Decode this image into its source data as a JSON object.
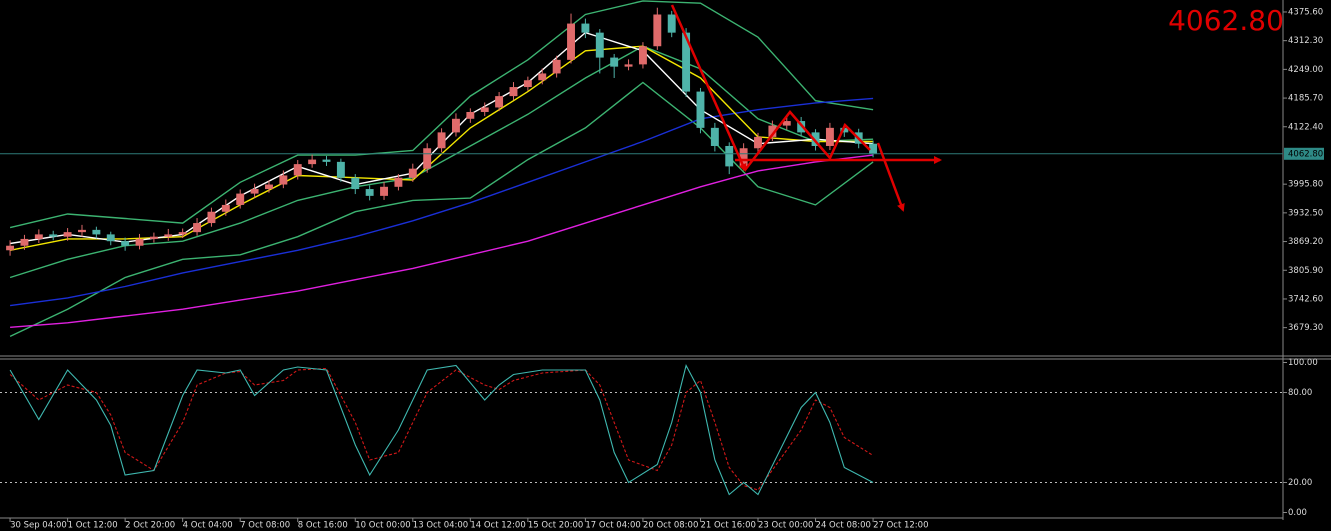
{
  "chart_data": [
    {
      "type": "candlestick",
      "annotation": "4062.80",
      "current_price": {
        "value": 4062.8,
        "label": "4062.80"
      },
      "xlim": [
        -0.7,
        88.5
      ],
      "ylim": [
        3619,
        4402
      ],
      "yticks": [
        {
          "value": 4375.6,
          "label": "4375.60"
        },
        {
          "value": 4312.3,
          "label": "4312.30"
        },
        {
          "value": 4249,
          "label": "4249.00"
        },
        {
          "value": 4185.7,
          "label": "4185.70"
        },
        {
          "value": 4122.4,
          "label": "4122.40"
        },
        {
          "value": 3995.8,
          "label": "3995.80"
        },
        {
          "value": 3932.5,
          "label": "3932.50"
        },
        {
          "value": 3869.2,
          "label": "3869.20"
        },
        {
          "value": 3805.9,
          "label": "3805.90"
        },
        {
          "value": 3742.6,
          "label": "3742.60"
        },
        {
          "value": 3679.3,
          "label": "3679.30"
        }
      ],
      "up_color": "#e06b6b",
      "down_color": "#4fb3a9",
      "open": [
        3850,
        3860,
        3875,
        3885,
        3880,
        3890,
        3895,
        3885,
        3870,
        3860,
        3875,
        3880,
        3885,
        3890,
        3910,
        3935,
        3950,
        3975,
        3985,
        3995,
        4015,
        4040,
        4050,
        4045,
        4010,
        3985,
        3970,
        3990,
        4010,
        4030,
        4075,
        4110,
        4140,
        4155,
        4165,
        4190,
        4210,
        4225,
        4240,
        4270,
        4350,
        4330,
        4275,
        4255,
        4260,
        4300,
        4370,
        4330,
        4200,
        4120,
        4080,
        4035,
        4075,
        4100,
        4125,
        4135,
        4110,
        4080,
        4120,
        4110,
        4085
      ],
      "high": [
        3872,
        3884,
        3896,
        3893,
        3899,
        3906,
        3902,
        3891,
        3878,
        3886,
        3889,
        3897,
        3898,
        3921,
        3944,
        3962,
        3984,
        3997,
        4004,
        4026,
        4049,
        4061,
        4058,
        4052,
        4018,
        3993,
        4001,
        4018,
        4041,
        4086,
        4119,
        4152,
        4163,
        4176,
        4199,
        4221,
        4233,
        4251,
        4279,
        4372,
        4361,
        4338,
        4283,
        4271,
        4309,
        4385,
        4378,
        4340,
        4208,
        4131,
        4088,
        4086,
        4109,
        4136,
        4143,
        4144,
        4117,
        4131,
        4128,
        4118,
        4092
      ],
      "low": [
        3838,
        3851,
        3866,
        3872,
        3871,
        3880,
        3876,
        3861,
        3849,
        3852,
        3867,
        3871,
        3877,
        3882,
        3902,
        3926,
        3942,
        3966,
        3977,
        3987,
        4006,
        4032,
        4036,
        4001,
        3974,
        3960,
        3961,
        3982,
        4001,
        4021,
        4066,
        4101,
        4131,
        4146,
        4157,
        4181,
        4202,
        4216,
        4231,
        4262,
        4318,
        4240,
        4230,
        4247,
        4251,
        4292,
        4320,
        4188,
        4108,
        4068,
        4018,
        4026,
        4066,
        4091,
        4116,
        4101,
        4070,
        4071,
        4100,
        4075,
        4055
      ],
      "close": [
        3860,
        3875,
        3885,
        3880,
        3890,
        3895,
        3885,
        3870,
        3860,
        3875,
        3880,
        3885,
        3890,
        3910,
        3935,
        3950,
        3975,
        3985,
        3995,
        4015,
        4040,
        4050,
        4045,
        4010,
        3985,
        3970,
        3990,
        4010,
        4030,
        4075,
        4110,
        4140,
        4155,
        4165,
        4190,
        4210,
        4225,
        4240,
        4270,
        4350,
        4330,
        4275,
        4255,
        4260,
        4300,
        4370,
        4330,
        4200,
        4120,
        4080,
        4035,
        4075,
        4100,
        4125,
        4135,
        4110,
        4080,
        4120,
        4110,
        4085,
        4062.8
      ],
      "overlay_x": [
        0,
        4,
        8,
        12,
        16,
        20,
        24,
        28,
        32,
        36,
        40,
        44,
        48,
        52,
        56,
        60
      ],
      "overlays": [
        {
          "color": "#3cb371",
          "values": [
            3900,
            3930,
            3920,
            3910,
            4000,
            4060,
            4060,
            4070,
            4190,
            4270,
            4370,
            4400,
            4395,
            4320,
            4180,
            4160
          ]
        },
        {
          "color": "#3cb371",
          "values": [
            3790,
            3830,
            3860,
            3870,
            3910,
            3960,
            3990,
            4010,
            4080,
            4150,
            4230,
            4300,
            4250,
            4140,
            4090,
            4095
          ]
        },
        {
          "color": "#3cb371",
          "values": [
            3660,
            3720,
            3790,
            3830,
            3840,
            3880,
            3935,
            3960,
            3965,
            4050,
            4120,
            4220,
            4120,
            3990,
            3950,
            4045
          ]
        },
        {
          "color": "#e020e0",
          "values": [
            3680,
            3690,
            3705,
            3720,
            3740,
            3760,
            3785,
            3810,
            3840,
            3870,
            3910,
            3950,
            3990,
            4025,
            4045,
            4060
          ]
        },
        {
          "color": "#1a2fd6",
          "values": [
            3728,
            3745,
            3770,
            3800,
            3825,
            3850,
            3880,
            3915,
            3955,
            4000,
            4045,
            4090,
            4140,
            4160,
            4175,
            4185
          ]
        },
        {
          "color": "#f2e600",
          "values": [
            3850,
            3875,
            3875,
            3880,
            3950,
            4015,
            4010,
            4005,
            4120,
            4200,
            4290,
            4300,
            4230,
            4100,
            4090,
            4090
          ]
        },
        {
          "color": "#ffffff",
          "values": [
            3865,
            3885,
            3868,
            3885,
            3970,
            4035,
            3995,
            4020,
            4150,
            4220,
            4330,
            4290,
            4160,
            4085,
            4095,
            4085
          ]
        }
      ]
    },
    {
      "type": "line",
      "xlim": [
        -0.7,
        88.5
      ],
      "ylim": [
        -5,
        103
      ],
      "yticks": [
        {
          "value": 100,
          "label": "100.00"
        },
        {
          "value": 80,
          "label": "80.00"
        },
        {
          "value": 20,
          "label": "20.00"
        },
        {
          "value": 0,
          "label": "0.00"
        }
      ],
      "levels": [
        80,
        20
      ],
      "xticks": [
        {
          "value": 0,
          "label": "30 Sep 04:00"
        },
        {
          "value": 4,
          "label": "1 Oct 12:00"
        },
        {
          "value": 8,
          "label": "2 Oct 20:00"
        },
        {
          "value": 12,
          "label": "4 Oct 04:00"
        },
        {
          "value": 16,
          "label": "7 Oct 08:00"
        },
        {
          "value": 20,
          "label": "8 Oct 16:00"
        },
        {
          "value": 24,
          "label": "10 Oct 00:00"
        },
        {
          "value": 28,
          "label": "13 Oct 04:00"
        },
        {
          "value": 32,
          "label": "14 Oct 12:00"
        },
        {
          "value": 36,
          "label": "15 Oct 20:00"
        },
        {
          "value": 40,
          "label": "17 Oct 04:00"
        },
        {
          "value": 44,
          "label": "20 Oct 08:00"
        },
        {
          "value": 48,
          "label": "21 Oct 16:00"
        },
        {
          "value": 52,
          "label": "23 Oct 00:00"
        },
        {
          "value": 56,
          "label": "24 Oct 08:00"
        },
        {
          "value": 60,
          "label": "27 Oct 12:00"
        }
      ],
      "x": [
        0,
        2,
        4,
        6,
        7,
        8,
        10,
        12,
        13,
        15,
        16,
        17,
        19,
        20,
        22,
        24,
        25,
        27,
        29,
        31,
        33,
        34,
        35,
        37,
        40,
        41,
        42,
        43,
        45,
        46,
        47,
        48,
        49,
        50,
        51,
        52,
        55,
        56,
        57,
        58,
        60
      ],
      "series": [
        {
          "color": "#d01818",
          "dashed": true,
          "values": [
            92,
            75,
            85,
            80,
            65,
            40,
            28,
            60,
            85,
            93,
            94,
            85,
            88,
            95,
            96,
            60,
            35,
            40,
            80,
            95,
            85,
            82,
            88,
            93,
            95,
            85,
            60,
            35,
            28,
            45,
            80,
            88,
            60,
            30,
            18,
            15,
            55,
            75,
            70,
            50,
            38
          ]
        },
        {
          "color": "#3fb8b0",
          "dashed": false,
          "values": [
            95,
            62,
            95,
            75,
            58,
            25,
            28,
            78,
            95,
            93,
            95,
            78,
            95,
            97,
            95,
            45,
            25,
            55,
            95,
            98,
            75,
            85,
            92,
            95,
            95,
            75,
            40,
            20,
            32,
            60,
            98,
            80,
            35,
            12,
            20,
            12,
            70,
            80,
            60,
            30,
            20
          ]
        }
      ]
    }
  ]
}
